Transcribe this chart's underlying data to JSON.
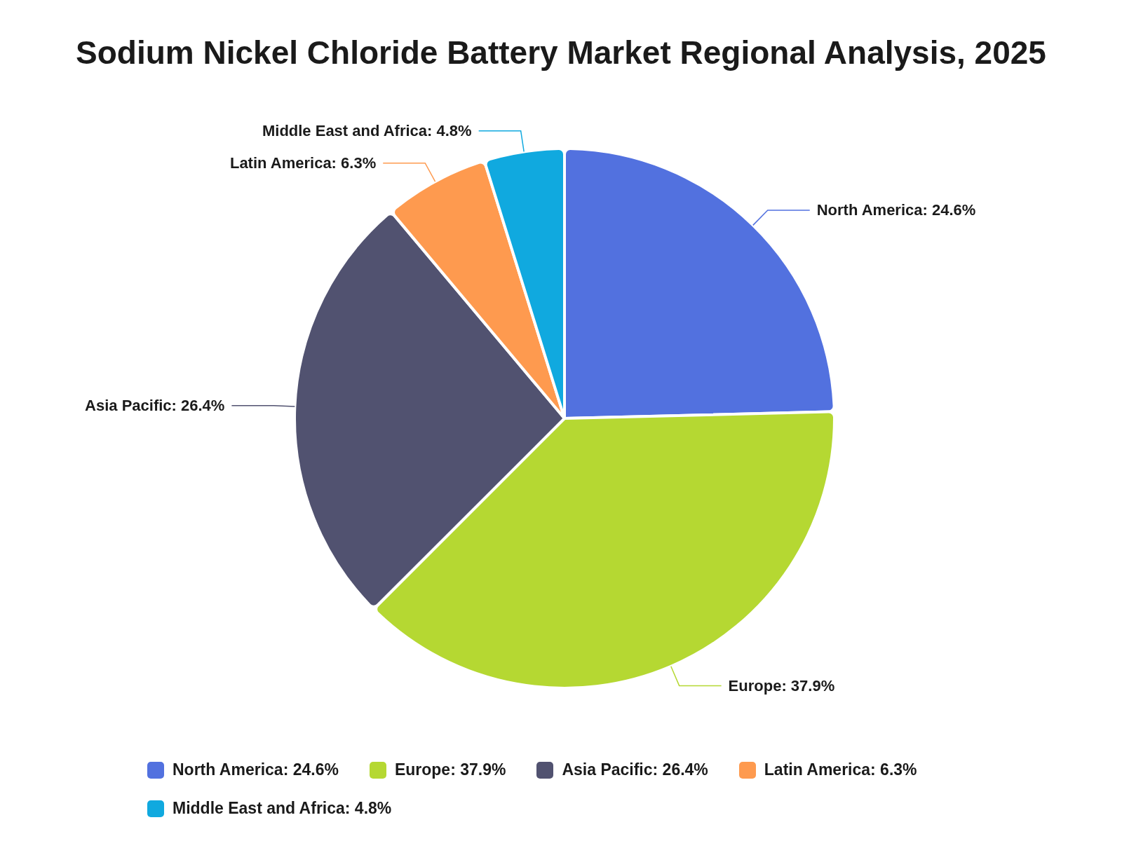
{
  "chart_data": {
    "type": "pie",
    "title": "Sodium Nickel Chloride Battery Market Regional Analysis, 2025",
    "categories": [
      "North America",
      "Europe",
      "Asia Pacific",
      "Latin America",
      "Middle East and Africa"
    ],
    "values": [
      24.6,
      37.9,
      26.4,
      6.3,
      4.8
    ],
    "value_labels": [
      "24.6%",
      "37.9%",
      "26.4%",
      "6.3%",
      "4.8%"
    ],
    "colors": [
      "#5271df",
      "#b5d832",
      "#515270",
      "#fe9a4f",
      "#10a9df"
    ],
    "legend": "bottom"
  }
}
